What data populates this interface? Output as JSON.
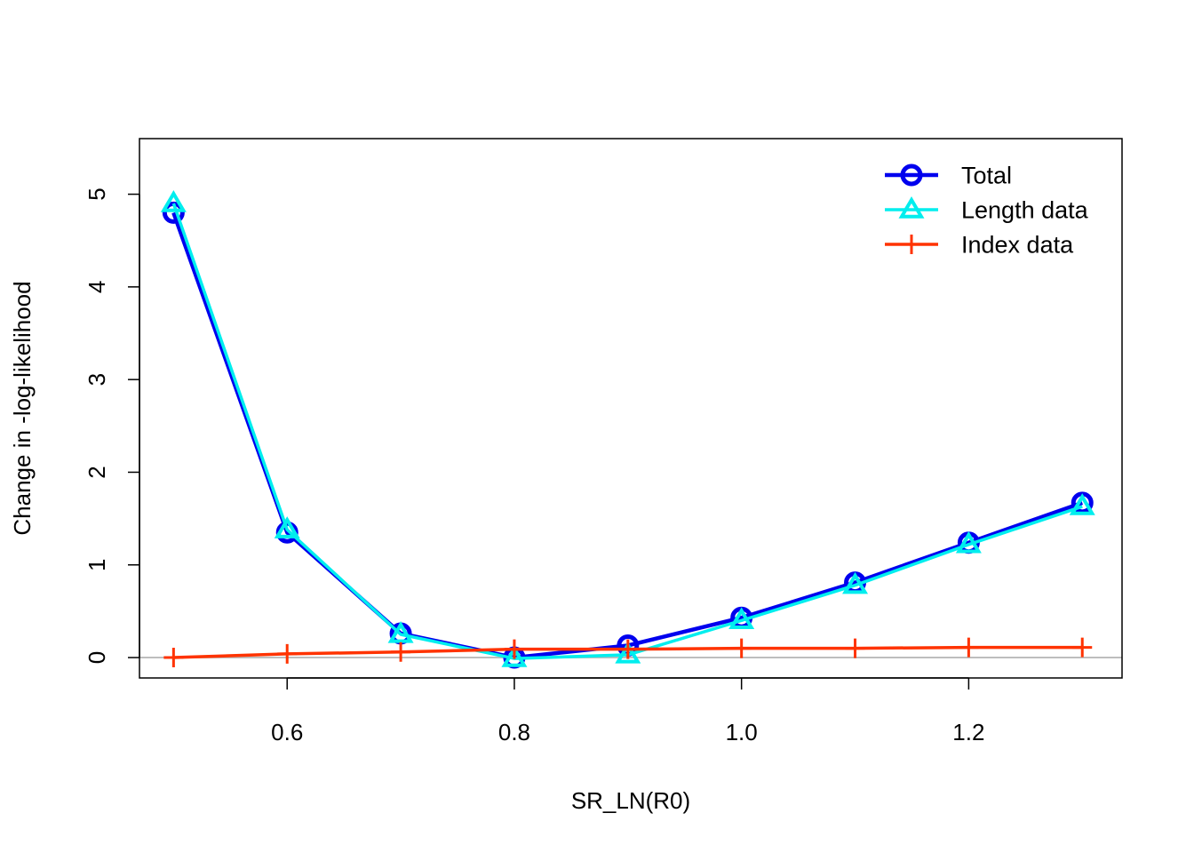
{
  "chart_data": {
    "type": "line",
    "title": "",
    "xlabel": "SR_LN(R0)",
    "ylabel": "Change in -log-likelihood",
    "xlim": [
      0.47,
      1.335
    ],
    "ylim": [
      -0.22,
      5.6
    ],
    "x_ticks": [
      0.6,
      0.8,
      1.0,
      1.2
    ],
    "x_tick_labels": [
      "0.6",
      "0.8",
      "1.0",
      "1.2"
    ],
    "y_ticks": [
      0,
      1,
      2,
      3,
      4,
      5
    ],
    "y_tick_labels": [
      "0",
      "1",
      "2",
      "3",
      "4",
      "5"
    ],
    "reference_line_y": 0,
    "legend_position": "top-right",
    "x": [
      0.5,
      0.6,
      0.7,
      0.8,
      0.9,
      1.0,
      1.1,
      1.2,
      1.3
    ],
    "series": [
      {
        "name": "Total",
        "color": "#0000ee",
        "marker": "circle",
        "values": [
          4.8,
          1.35,
          0.26,
          0.0,
          0.13,
          0.43,
          0.81,
          1.24,
          1.67
        ]
      },
      {
        "name": "Length data",
        "color": "#00eeee",
        "marker": "triangle",
        "values": [
          4.9,
          1.38,
          0.25,
          -0.01,
          0.03,
          0.4,
          0.78,
          1.22,
          1.63
        ]
      },
      {
        "name": "Index data",
        "color": "#ff3300",
        "marker": "plus",
        "values": [
          0.0,
          0.04,
          0.06,
          0.09,
          0.09,
          0.1,
          0.1,
          0.11,
          0.11
        ]
      }
    ]
  }
}
